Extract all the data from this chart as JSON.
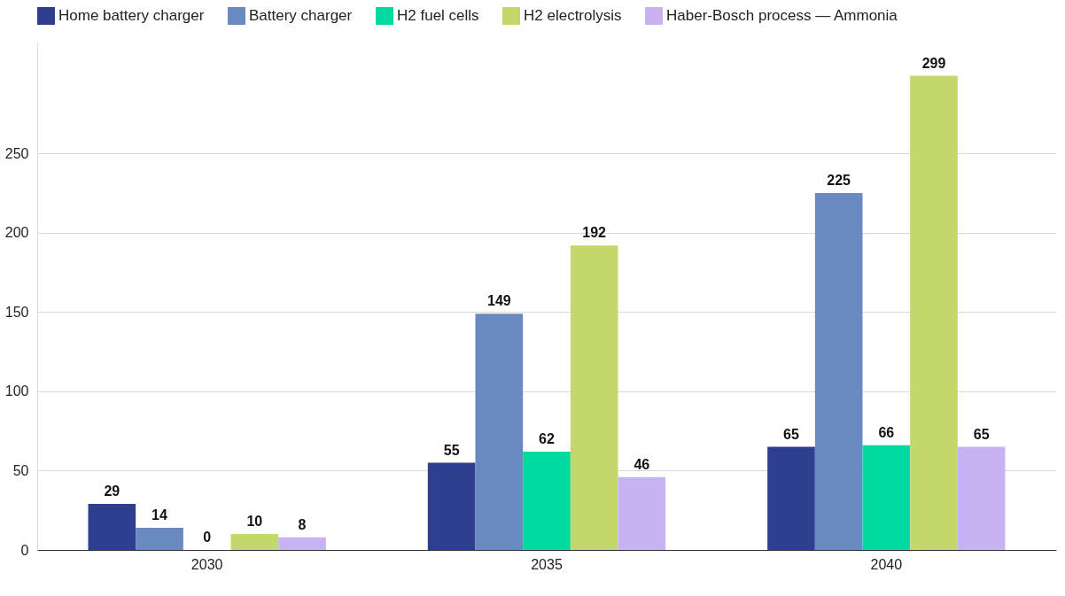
{
  "chart_data": {
    "type": "bar",
    "categories": [
      "2030",
      "2035",
      "2040"
    ],
    "series": [
      {
        "name": "Home battery charger",
        "color": "#2e3f8f",
        "values": [
          29,
          55,
          65
        ]
      },
      {
        "name": "Battery charger",
        "color": "#6a89c1",
        "values": [
          14,
          149,
          225
        ]
      },
      {
        "name": "H2 fuel cells",
        "color": "#00d9a0",
        "values": [
          0,
          62,
          66
        ]
      },
      {
        "name": "H2 electrolysis",
        "color": "#c3d86b",
        "values": [
          10,
          192,
          299
        ]
      },
      {
        "name": "Haber-Bosch process — Ammonia",
        "color": "#c7b3f2",
        "values": [
          8,
          46,
          65
        ]
      }
    ],
    "ylim": [
      0,
      320
    ],
    "yticks": [
      0,
      50,
      100,
      150,
      200,
      250
    ],
    "grid": "y",
    "legend": "top left",
    "data_labels": true
  }
}
